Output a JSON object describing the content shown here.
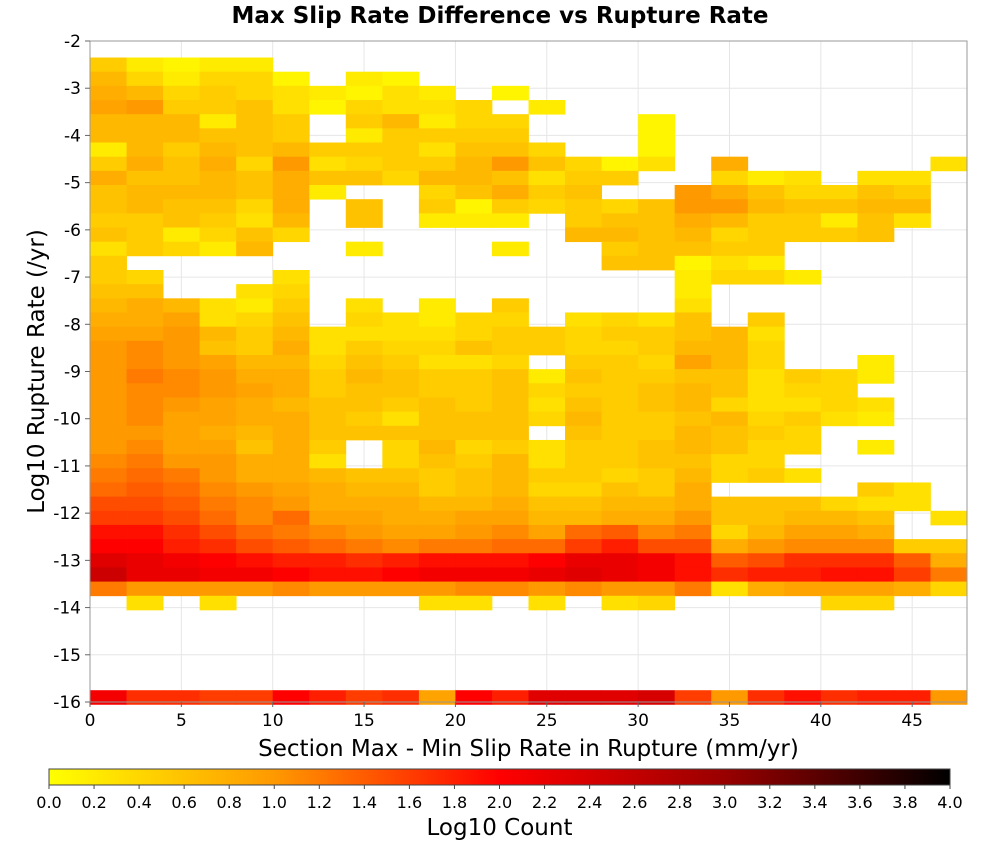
{
  "chart_data": {
    "type": "heatmap",
    "title": "Max Slip Rate Difference vs Rupture Rate",
    "xlabel": "Section Max - Min Slip Rate in Rupture (mm/yr)",
    "ylabel": "Log10 Rupture Rate (/yr)",
    "colorbar_label": "Log10 Count",
    "xlim": [
      0,
      48
    ],
    "ylim": [
      -16,
      -2
    ],
    "x_ticks": [
      "0",
      "5",
      "10",
      "15",
      "20",
      "25",
      "30",
      "35",
      "40",
      "45"
    ],
    "y_ticks": [
      "-2",
      "-3",
      "-4",
      "-5",
      "-6",
      "-7",
      "-8",
      "-9",
      "-10",
      "-11",
      "-12",
      "-13",
      "-14",
      "-15",
      "-16"
    ],
    "colorbar_ticks": [
      "0.0",
      "0.2",
      "0.4",
      "0.6",
      "0.8",
      "1.0",
      "1.2",
      "1.4",
      "1.6",
      "1.8",
      "2.0",
      "2.2",
      "2.4",
      "2.6",
      "2.8",
      "3.0",
      "3.2",
      "3.4",
      "3.6",
      "3.8",
      "4.0"
    ],
    "color_range": [
      0,
      4
    ],
    "colormap": [
      "#ffff00",
      "#ff9900",
      "#ff0000",
      "#990000",
      "#000000"
    ],
    "grid": true,
    "x_bin_width": 2,
    "y_bin_width": 0.3,
    "x_bin_start": 0,
    "cells_note": "rows: y bin center (log10 rate); values: log10 count per x bin starting at 0 (width 2); null = empty",
    "rows": [
      {
        "y": -2.5,
        "v": [
          0.5,
          0.2,
          0.1,
          0.2,
          0.2,
          null,
          null,
          null,
          null,
          null,
          null,
          null,
          null,
          null,
          null,
          null,
          null,
          null,
          null,
          null,
          null,
          null,
          null,
          null
        ]
      },
      {
        "y": -2.8,
        "v": [
          0.7,
          0.4,
          0.2,
          0.4,
          0.4,
          0.1,
          null,
          0.2,
          0.1,
          null,
          null,
          null,
          null,
          null,
          null,
          null,
          null,
          null,
          null,
          null,
          null,
          null,
          null,
          null
        ]
      },
      {
        "y": -3.1,
        "v": [
          0.8,
          0.7,
          0.4,
          0.5,
          0.4,
          0.3,
          0.2,
          0.1,
          0.3,
          0.2,
          null,
          0.1,
          null,
          null,
          null,
          null,
          null,
          null,
          null,
          null,
          null,
          null,
          null,
          null
        ]
      },
      {
        "y": -3.4,
        "v": [
          0.9,
          1.0,
          0.5,
          0.5,
          0.6,
          0.3,
          0.1,
          0.4,
          0.3,
          0.3,
          0.4,
          null,
          0.2,
          null,
          null,
          null,
          null,
          null,
          null,
          null,
          null,
          null,
          null,
          null
        ]
      },
      {
        "y": -3.7,
        "v": [
          0.7,
          0.7,
          0.7,
          0.2,
          0.6,
          0.5,
          null,
          0.5,
          0.7,
          0.2,
          0.4,
          0.4,
          null,
          null,
          null,
          0.1,
          null,
          null,
          null,
          null,
          null,
          null,
          null,
          null
        ]
      },
      {
        "y": -4.0,
        "v": [
          0.7,
          0.7,
          0.7,
          0.6,
          0.6,
          0.5,
          null,
          0.2,
          0.5,
          0.5,
          0.5,
          0.5,
          null,
          null,
          null,
          0.1,
          null,
          null,
          null,
          null,
          null,
          null,
          null,
          null
        ]
      },
      {
        "y": -4.3,
        "v": [
          0.2,
          0.7,
          0.5,
          0.7,
          0.6,
          0.7,
          0.5,
          0.5,
          0.5,
          0.3,
          0.6,
          0.6,
          0.4,
          null,
          null,
          0.1,
          null,
          null,
          null,
          null,
          null,
          null,
          null,
          null
        ]
      },
      {
        "y": -4.6,
        "v": [
          0.5,
          0.8,
          0.6,
          0.8,
          0.4,
          1.0,
          0.3,
          0.4,
          0.5,
          0.5,
          0.7,
          1.0,
          0.6,
          0.4,
          0.1,
          0.3,
          null,
          0.8,
          null,
          null,
          null,
          null,
          null,
          0.3
        ]
      },
      {
        "y": -4.9,
        "v": [
          0.8,
          0.6,
          0.6,
          0.7,
          0.6,
          0.8,
          0.6,
          0.6,
          0.4,
          0.7,
          0.7,
          0.6,
          0.3,
          0.5,
          0.5,
          null,
          null,
          0.4,
          0.2,
          0.3,
          null,
          0.3,
          0.3,
          null
        ]
      },
      {
        "y": -5.2,
        "v": [
          0.6,
          0.7,
          0.7,
          0.7,
          0.6,
          0.8,
          0.2,
          null,
          null,
          0.4,
          0.6,
          0.8,
          0.5,
          0.6,
          null,
          null,
          1.0,
          0.8,
          0.6,
          0.4,
          0.4,
          0.6,
          0.5,
          null
        ]
      },
      {
        "y": -5.5,
        "v": [
          0.6,
          0.7,
          0.6,
          0.6,
          0.4,
          0.8,
          null,
          0.6,
          null,
          0.5,
          0.1,
          0.5,
          0.4,
          0.5,
          0.4,
          0.6,
          1.0,
          1.0,
          0.7,
          0.6,
          0.6,
          0.7,
          0.7,
          null
        ]
      },
      {
        "y": -5.8,
        "v": [
          0.5,
          0.5,
          0.6,
          0.5,
          0.3,
          0.7,
          null,
          0.6,
          null,
          0.2,
          0.2,
          0.2,
          null,
          0.5,
          0.6,
          0.6,
          0.8,
          0.7,
          0.5,
          0.5,
          0.2,
          0.6,
          0.3,
          null
        ]
      },
      {
        "y": -6.1,
        "v": [
          0.6,
          0.5,
          0.2,
          0.4,
          0.6,
          0.4,
          null,
          null,
          null,
          null,
          null,
          null,
          null,
          0.7,
          0.7,
          0.6,
          0.7,
          0.4,
          0.5,
          0.5,
          0.5,
          0.6,
          null,
          null
        ]
      },
      {
        "y": -6.4,
        "v": [
          0.3,
          0.5,
          0.4,
          0.2,
          0.7,
          null,
          null,
          0.2,
          null,
          null,
          null,
          0.2,
          null,
          null,
          0.5,
          0.6,
          0.6,
          0.5,
          0.5,
          null,
          null,
          null,
          null,
          null
        ]
      },
      {
        "y": -6.7,
        "v": [
          0.5,
          null,
          null,
          null,
          null,
          null,
          null,
          null,
          null,
          null,
          null,
          null,
          null,
          null,
          0.6,
          0.6,
          0.1,
          0.3,
          0.2,
          null,
          null,
          null,
          null,
          null
        ]
      },
      {
        "y": -7.0,
        "v": [
          0.5,
          0.4,
          null,
          null,
          null,
          0.3,
          null,
          null,
          null,
          null,
          null,
          null,
          null,
          null,
          null,
          null,
          0.2,
          0.4,
          0.4,
          0.2,
          null,
          null,
          null,
          null
        ]
      },
      {
        "y": -7.3,
        "v": [
          0.6,
          0.6,
          null,
          null,
          0.3,
          0.4,
          null,
          null,
          null,
          null,
          null,
          null,
          null,
          null,
          null,
          null,
          0.2,
          null,
          null,
          null,
          null,
          null,
          null,
          null
        ]
      },
      {
        "y": -7.6,
        "v": [
          0.7,
          0.8,
          0.7,
          0.3,
          0.2,
          0.5,
          null,
          0.3,
          null,
          0.2,
          null,
          0.5,
          null,
          null,
          null,
          null,
          0.3,
          null,
          null,
          null,
          null,
          null,
          null,
          null
        ]
      },
      {
        "y": -7.9,
        "v": [
          0.8,
          0.8,
          0.9,
          0.3,
          0.4,
          0.6,
          null,
          0.4,
          0.3,
          0.2,
          0.4,
          0.4,
          null,
          0.3,
          0.4,
          0.3,
          0.6,
          null,
          0.5,
          null,
          null,
          null,
          null,
          null
        ]
      },
      {
        "y": -8.2,
        "v": [
          0.9,
          0.9,
          1.0,
          0.7,
          0.5,
          0.7,
          0.3,
          0.3,
          0.3,
          0.3,
          0.4,
          0.5,
          0.5,
          0.4,
          0.5,
          0.5,
          0.6,
          0.7,
          0.3,
          null,
          null,
          null,
          null,
          null
        ]
      },
      {
        "y": -8.5,
        "v": [
          1.0,
          1.1,
          1.0,
          0.6,
          0.5,
          0.8,
          0.3,
          0.5,
          0.4,
          0.4,
          0.6,
          0.5,
          0.5,
          0.4,
          0.4,
          0.5,
          0.7,
          0.7,
          0.4,
          null,
          null,
          null,
          null,
          null
        ]
      },
      {
        "y": -8.8,
        "v": [
          1.0,
          1.1,
          1.0,
          0.9,
          0.7,
          0.7,
          0.4,
          0.6,
          0.5,
          0.3,
          0.3,
          0.4,
          null,
          0.5,
          0.5,
          0.4,
          0.9,
          0.7,
          0.4,
          null,
          null,
          0.2,
          null,
          null
        ]
      },
      {
        "y": -9.1,
        "v": [
          1.0,
          1.2,
          1.1,
          1.0,
          0.8,
          0.8,
          0.5,
          0.7,
          0.6,
          0.5,
          0.5,
          0.6,
          0.2,
          0.6,
          0.5,
          0.5,
          0.6,
          0.6,
          0.3,
          0.5,
          0.4,
          0.2,
          null,
          null
        ]
      },
      {
        "y": -9.4,
        "v": [
          1.0,
          1.1,
          1.1,
          1.0,
          0.9,
          0.8,
          0.5,
          0.6,
          0.6,
          0.5,
          0.5,
          0.6,
          0.4,
          0.5,
          0.5,
          0.6,
          0.7,
          0.6,
          0.3,
          0.4,
          0.4,
          null,
          null,
          null
        ]
      },
      {
        "y": -9.7,
        "v": [
          1.0,
          1.1,
          1.0,
          0.9,
          0.8,
          0.7,
          0.6,
          0.6,
          0.5,
          0.6,
          0.5,
          0.6,
          0.3,
          0.6,
          0.5,
          0.6,
          0.7,
          0.4,
          0.3,
          0.3,
          0.4,
          0.3,
          null,
          null
        ]
      },
      {
        "y": -10.0,
        "v": [
          1.0,
          1.1,
          0.9,
          0.9,
          0.8,
          0.8,
          0.6,
          0.5,
          0.3,
          0.6,
          0.6,
          0.6,
          0.4,
          0.7,
          0.5,
          0.5,
          0.6,
          0.7,
          0.4,
          0.5,
          0.3,
          0.2,
          null,
          null
        ]
      },
      {
        "y": -10.3,
        "v": [
          1.0,
          1.0,
          0.9,
          0.8,
          0.7,
          0.8,
          0.6,
          0.6,
          0.6,
          0.6,
          0.6,
          0.6,
          null,
          0.6,
          0.5,
          0.5,
          0.7,
          0.6,
          0.5,
          0.4,
          null,
          null,
          null,
          null
        ]
      },
      {
        "y": -10.6,
        "v": [
          1.0,
          1.1,
          0.9,
          0.9,
          0.6,
          0.8,
          0.5,
          null,
          0.4,
          0.7,
          0.4,
          0.5,
          0.3,
          0.5,
          0.5,
          0.6,
          0.7,
          0.6,
          0.4,
          0.4,
          null,
          0.2,
          null,
          null
        ]
      },
      {
        "y": -10.9,
        "v": [
          1.1,
          1.2,
          1.0,
          1.0,
          0.8,
          0.8,
          0.3,
          null,
          0.4,
          0.6,
          0.5,
          0.7,
          0.3,
          0.5,
          0.5,
          0.6,
          0.6,
          0.4,
          0.4,
          null,
          null,
          null,
          null,
          null
        ]
      },
      {
        "y": -11.2,
        "v": [
          1.2,
          1.3,
          1.2,
          1.0,
          0.8,
          0.8,
          0.7,
          0.6,
          0.6,
          0.5,
          0.6,
          0.7,
          0.5,
          0.5,
          0.4,
          0.5,
          0.7,
          0.4,
          0.5,
          0.3,
          null,
          null,
          null,
          null
        ]
      },
      {
        "y": -11.5,
        "v": [
          1.3,
          1.4,
          1.3,
          1.1,
          1.0,
          0.9,
          0.8,
          0.7,
          0.7,
          0.5,
          0.6,
          0.7,
          0.4,
          0.4,
          0.6,
          0.5,
          0.8,
          null,
          null,
          null,
          null,
          0.5,
          0.3,
          null
        ]
      },
      {
        "y": -11.8,
        "v": [
          1.5,
          1.5,
          1.4,
          1.2,
          1.1,
          1.0,
          0.8,
          0.8,
          0.8,
          0.7,
          0.7,
          0.8,
          0.6,
          0.6,
          0.7,
          0.7,
          0.8,
          0.6,
          0.6,
          0.6,
          0.4,
          0.3,
          0.3,
          null
        ]
      },
      {
        "y": -12.1,
        "v": [
          1.6,
          1.6,
          1.5,
          1.3,
          1.1,
          1.3,
          0.9,
          0.9,
          0.8,
          0.8,
          0.9,
          0.9,
          0.7,
          0.7,
          0.8,
          0.8,
          1.0,
          0.6,
          0.6,
          0.7,
          0.7,
          0.6,
          null,
          0.3
        ]
      },
      {
        "y": -12.4,
        "v": [
          1.9,
          1.9,
          1.7,
          1.5,
          1.3,
          1.2,
          1.1,
          1.0,
          0.9,
          0.9,
          1.0,
          1.1,
          0.9,
          1.3,
          1.4,
          1.1,
          1.2,
          0.4,
          0.7,
          0.9,
          0.9,
          0.8,
          null,
          null
        ]
      },
      {
        "y": -12.7,
        "v": [
          2.0,
          2.0,
          1.8,
          1.7,
          1.5,
          1.4,
          1.3,
          1.2,
          1.1,
          1.2,
          1.2,
          1.3,
          1.3,
          1.6,
          1.8,
          1.5,
          1.5,
          0.8,
          1.0,
          1.1,
          1.1,
          1.1,
          0.5,
          0.5
        ]
      },
      {
        "y": -13.0,
        "v": [
          2.3,
          2.2,
          2.1,
          2.0,
          1.9,
          1.8,
          1.8,
          1.7,
          1.8,
          1.9,
          1.9,
          1.9,
          2.0,
          2.2,
          2.2,
          2.1,
          1.9,
          1.4,
          1.5,
          1.7,
          1.7,
          1.7,
          1.4,
          0.8
        ]
      },
      {
        "y": -13.3,
        "v": [
          2.5,
          2.2,
          2.2,
          2.1,
          2.1,
          2.0,
          1.9,
          1.9,
          2.0,
          2.1,
          2.1,
          2.1,
          2.2,
          2.3,
          2.2,
          2.1,
          1.9,
          1.7,
          1.8,
          1.8,
          1.9,
          1.9,
          1.6,
          1.2
        ]
      },
      {
        "y": -13.6,
        "v": [
          1.2,
          1.0,
          1.0,
          1.0,
          1.0,
          1.1,
          1.0,
          1.0,
          1.0,
          1.0,
          1.1,
          1.1,
          1.0,
          1.1,
          1.0,
          1.0,
          1.2,
          0.3,
          0.8,
          0.9,
          0.9,
          0.9,
          0.8,
          0.4
        ]
      },
      {
        "y": -13.9,
        "v": [
          null,
          0.3,
          null,
          0.3,
          null,
          null,
          null,
          null,
          null,
          0.3,
          0.3,
          null,
          0.3,
          null,
          0.3,
          0.4,
          null,
          null,
          null,
          null,
          0.4,
          0.4,
          null,
          null
        ]
      },
      {
        "y": -15.9,
        "v": [
          2.1,
          1.7,
          1.7,
          1.6,
          1.6,
          2.0,
          1.8,
          1.6,
          1.7,
          0.9,
          2.0,
          1.8,
          2.3,
          2.3,
          2.3,
          2.4,
          1.6,
          1.0,
          1.7,
          1.9,
          1.7,
          1.8,
          1.8,
          1.0
        ]
      }
    ]
  }
}
